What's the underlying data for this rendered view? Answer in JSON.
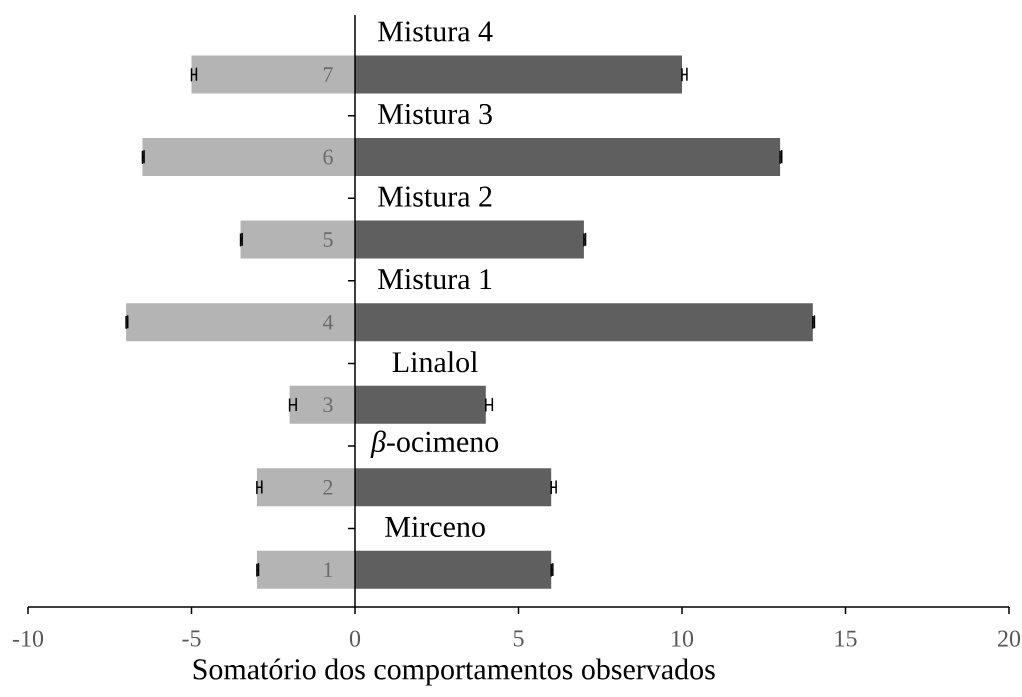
{
  "chart_data": {
    "type": "bar",
    "orientation": "horizontal",
    "stacked": true,
    "categories": [
      "7",
      "6",
      "5",
      "4",
      "3",
      "2",
      "1"
    ],
    "series": [
      {
        "color": "#b4b4b4",
        "values": [
          -5,
          -6.5,
          -3.5,
          -7,
          -2,
          -3,
          -3
        ],
        "errors": [
          [
            -5,
            -4.85
          ],
          [
            -6.5,
            -6.45
          ],
          [
            -3.5,
            -3.45
          ],
          [
            -7,
            -6.95
          ],
          [
            -2,
            -1.8
          ],
          [
            -3,
            -2.85
          ],
          [
            -3,
            -2.95
          ]
        ]
      },
      {
        "color": "#5f5f5f",
        "values": [
          10,
          13,
          7,
          14,
          4,
          6,
          6
        ],
        "errors": [
          [
            10,
            10.15
          ],
          [
            13,
            13.05
          ],
          [
            7,
            7.05
          ],
          [
            14,
            14.05
          ],
          [
            4,
            4.2
          ],
          [
            6,
            6.15
          ],
          [
            6,
            6.05
          ]
        ]
      }
    ],
    "xlim": [
      -10,
      20
    ],
    "xticks": [
      -10,
      -5,
      0,
      5,
      10,
      15,
      20
    ],
    "xlabel": "Somatório dos comportamentos observados",
    "annotations": [
      "Mistura 4",
      "Mistura 3",
      "Mistura 2",
      "Mistura 1",
      "Linalol",
      "*β*-ocimeno",
      "Mirceno"
    ]
  }
}
